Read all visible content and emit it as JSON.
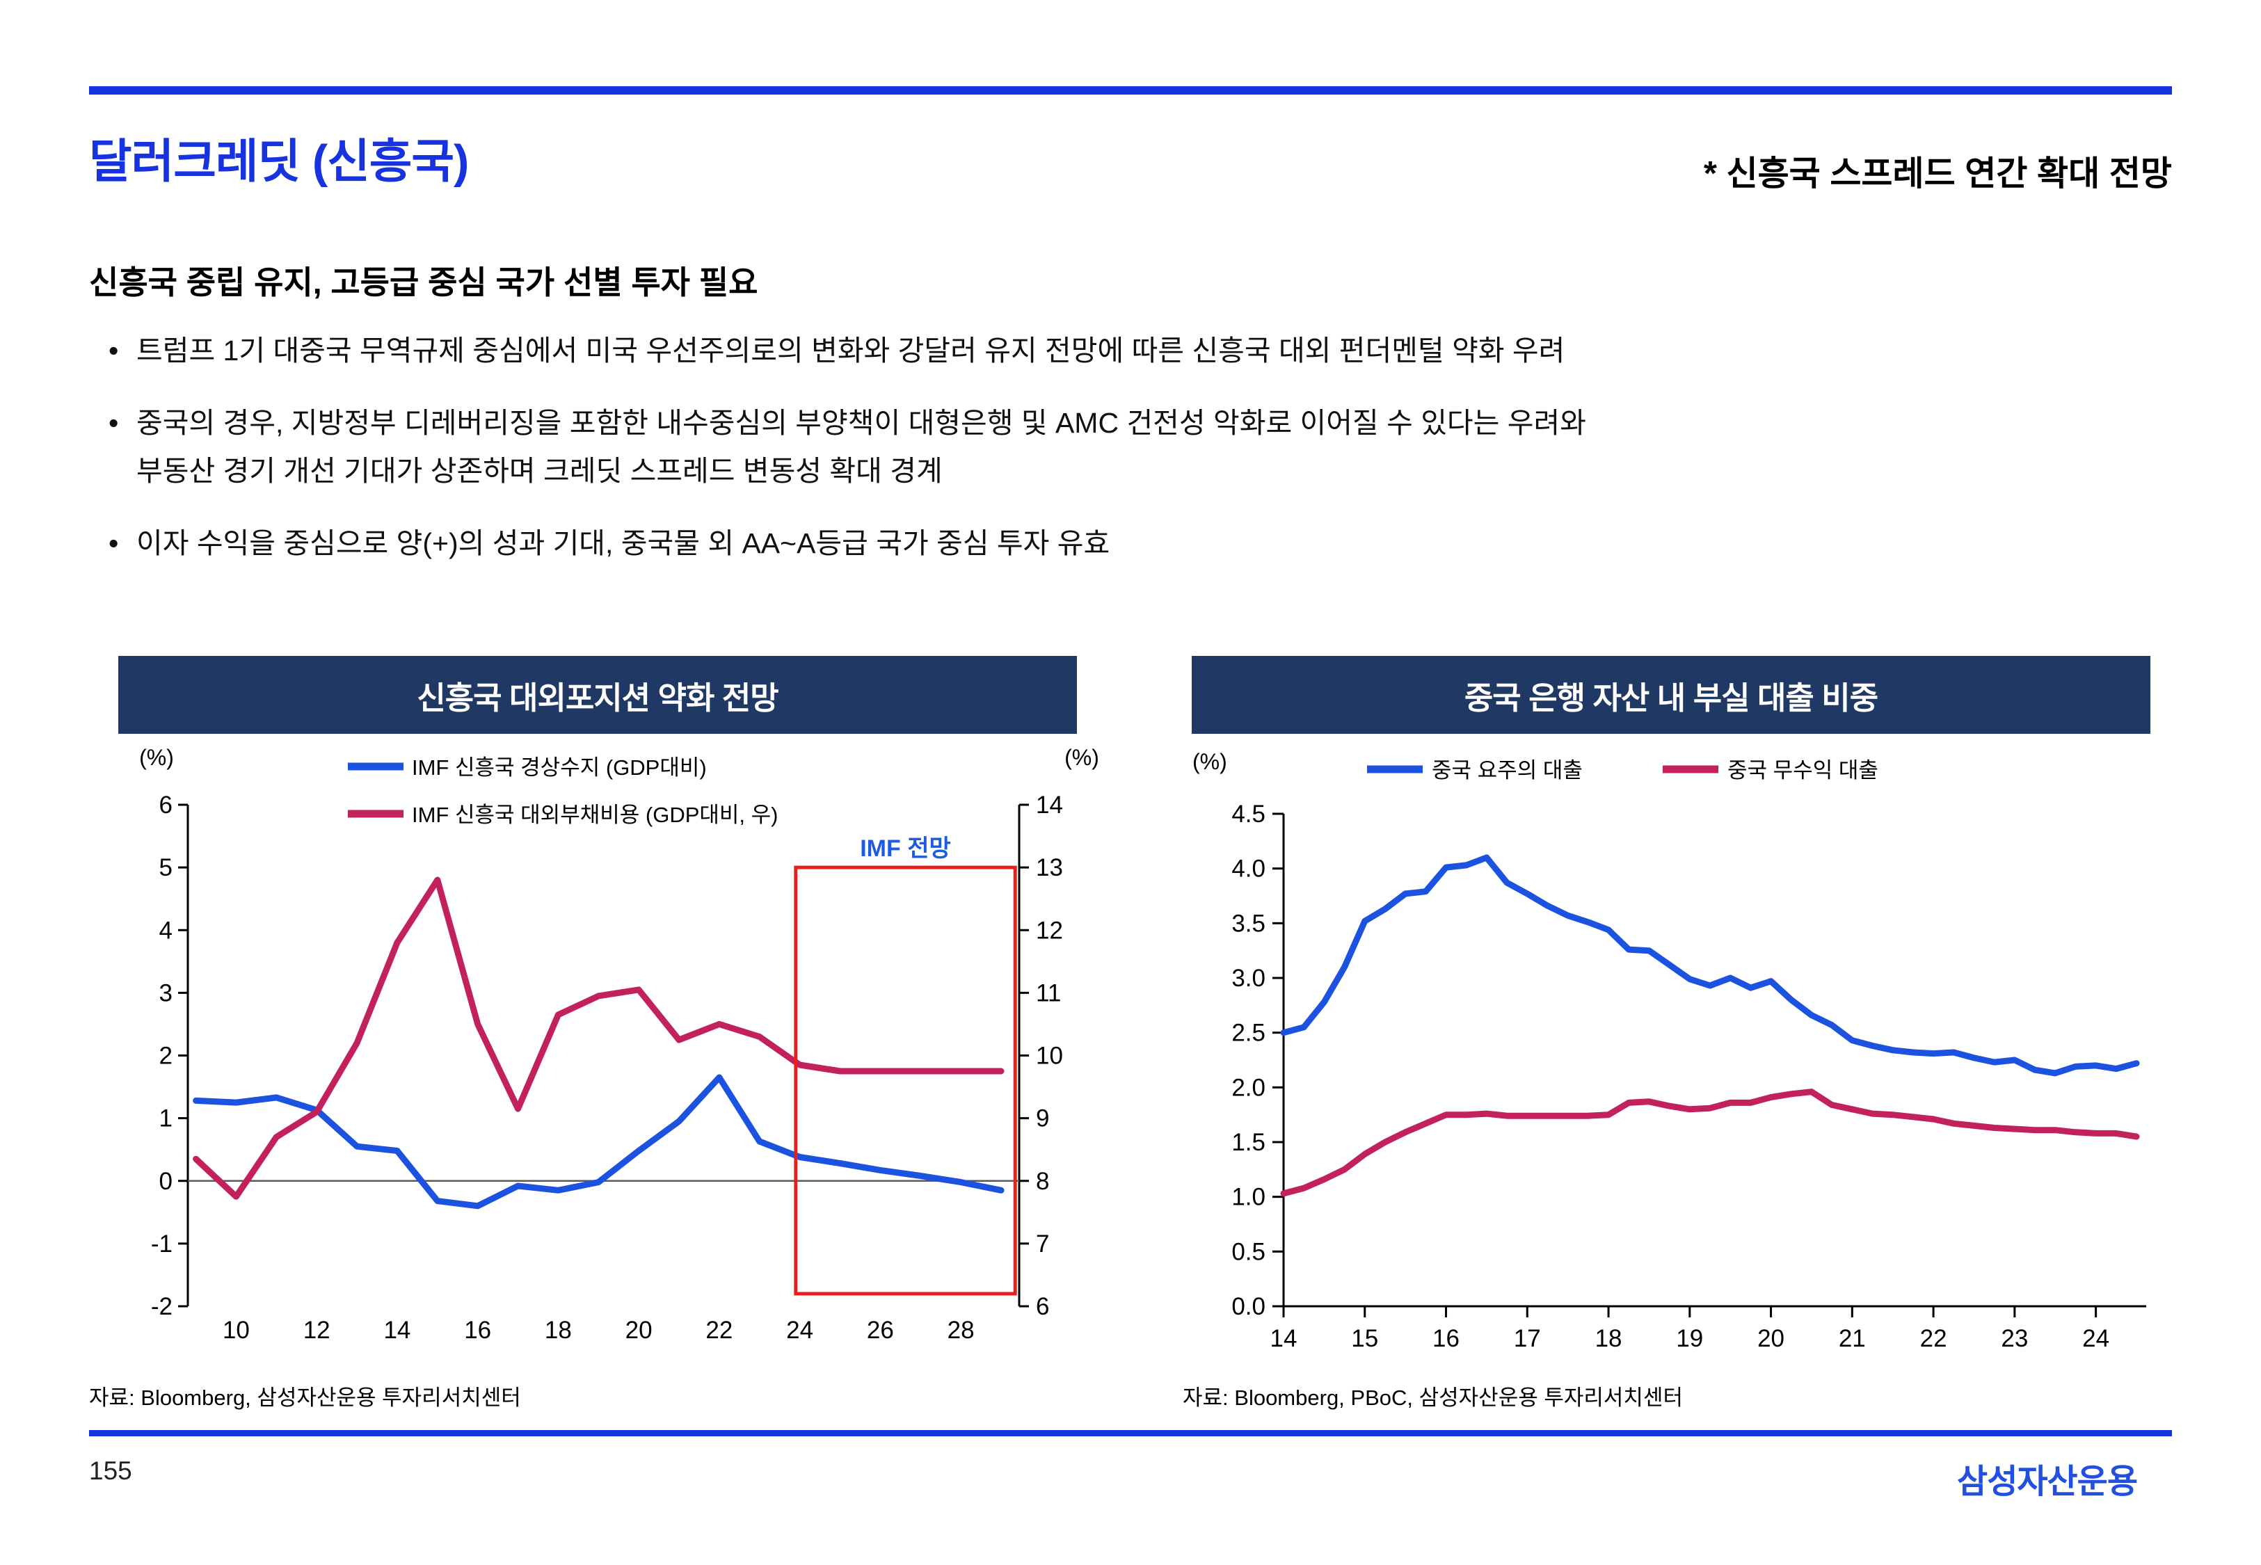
{
  "page": {
    "title": "달러크레딧 (신흥국)",
    "title_note": "* 신흥국 스프레드 연간 확대 전망",
    "subtitle": "신흥국 중립 유지, 고등급 중심 국가 선별 투자 필요",
    "bullets": [
      "트럼프 1기 대중국 무역규제 중심에서 미국 우선주의로의 변화와 강달러 유지 전망에 따른 신흥국 대외 펀더멘털 약화 우려",
      "중국의 경우, 지방정부 디레버리징을 포함한 내수중심의 부양책이 대형은행 및 AMC 건전성 악화로 이어질 수 있다는 우려와\n부동산 경기 개선 기대가 상존하며 크레딧 스프레드 변동성 확대 경계",
      "이자 수익을 중심으로 양(+)의 성과 기대, 중국물 외 AA~A등급 국가 중심 투자 유효"
    ],
    "page_number": "155",
    "logo": "삼성자산운용"
  },
  "colors": {
    "accent_blue": "#1733df",
    "header_navy": "#1f3864",
    "line_blue": "#1c52e0",
    "line_pink": "#c2215e",
    "forecast_box_red": "#e8201c",
    "forecast_label_blue": "#1e5be0",
    "logo_blue": "#2150e0"
  },
  "chart_data": [
    {
      "type": "line",
      "title": "신흥국 대외포지션 약화 전망",
      "unit_left": "(%)",
      "unit_right": "(%)",
      "legend_position": "top-left, stacked",
      "grid": false,
      "x_start": 9,
      "x_step": 1,
      "x_tick_values": [
        10,
        12,
        14,
        16,
        18,
        20,
        22,
        24,
        26,
        28
      ],
      "x_tick_labels": [
        "10",
        "12",
        "14",
        "16",
        "18",
        "20",
        "22",
        "24",
        "26",
        "28"
      ],
      "y_left": {
        "min": -2,
        "max": 6,
        "tick_values": [
          -2,
          -1,
          0,
          1,
          2,
          3,
          4,
          5,
          6
        ],
        "tick_labels": [
          "-2",
          "-1",
          "0",
          "1",
          "2",
          "3",
          "4",
          "5",
          "6"
        ]
      },
      "y_right": {
        "min": 6,
        "max": 14,
        "tick_values": [
          6,
          7,
          8,
          9,
          10,
          11,
          12,
          13,
          14
        ],
        "tick_labels": [
          "6",
          "7",
          "8",
          "9",
          "10",
          "11",
          "12",
          "13",
          "14"
        ]
      },
      "series": [
        {
          "name": "IMF 신흥국 경상수지 (GDP대비)",
          "axis": "left",
          "color": "#1c52e0",
          "values": [
            1.28,
            1.25,
            1.33,
            1.13,
            0.55,
            0.48,
            -0.32,
            -0.4,
            -0.08,
            -0.15,
            -0.02,
            0.48,
            0.95,
            1.65,
            0.63,
            0.38,
            0.28,
            0.17,
            0.08,
            -0.02,
            -0.15
          ]
        },
        {
          "name": "IMF 신흥국 대외부채비용 (GDP대비, 우)",
          "axis": "right",
          "color": "#c2215e",
          "values": [
            8.35,
            7.75,
            8.7,
            9.1,
            10.2,
            11.8,
            12.8,
            10.5,
            9.15,
            10.65,
            10.95,
            11.05,
            10.25,
            10.5,
            10.3,
            9.85,
            9.75,
            9.75,
            9.75,
            9.75,
            9.75
          ]
        }
      ],
      "annotation": {
        "label": "IMF 전망",
        "axis": "right",
        "x_from": 23.9,
        "x_to": 29.35,
        "y_from": 6.2,
        "y_to": 13.0,
        "box_color": "#e8201c",
        "label_color": "#1e5be0"
      },
      "source": "자료: Bloomberg, 삼성자산운용 투자리서치센터"
    },
    {
      "type": "line",
      "title": "중국 은행 자산 내 부실 대출 비중",
      "unit": "(%)",
      "legend_position": "top, horizontal",
      "grid": false,
      "x_start": 14,
      "x_step": 0.25,
      "x_tick_values": [
        14,
        15,
        16,
        17,
        18,
        19,
        20,
        21,
        22,
        23,
        24
      ],
      "x_tick_labels": [
        "14",
        "15",
        "16",
        "17",
        "18",
        "19",
        "20",
        "21",
        "22",
        "23",
        "24"
      ],
      "y": {
        "min": 0,
        "max": 4.5,
        "tick_values": [
          0,
          0.5,
          1,
          1.5,
          2,
          2.5,
          3,
          3.5,
          4,
          4.5
        ],
        "tick_labels": [
          "0.0",
          "0.5",
          "1.0",
          "1.5",
          "2.0",
          "2.5",
          "3.0",
          "3.5",
          "4.0",
          "4.5"
        ]
      },
      "series": [
        {
          "name": "중국 요주의 대출",
          "axis": "left",
          "color": "#1c52e0",
          "values": [
            2.5,
            2.55,
            2.78,
            3.1,
            3.52,
            3.63,
            3.77,
            3.79,
            4.01,
            4.03,
            4.1,
            3.87,
            3.77,
            3.66,
            3.57,
            3.51,
            3.44,
            3.26,
            3.25,
            3.12,
            2.99,
            2.93,
            3.0,
            2.91,
            2.97,
            2.8,
            2.66,
            2.57,
            2.43,
            2.38,
            2.34,
            2.32,
            2.31,
            2.32,
            2.27,
            2.23,
            2.25,
            2.16,
            2.13,
            2.19,
            2.2,
            2.17,
            2.22
          ]
        },
        {
          "name": "중국 무수익 대출",
          "axis": "left",
          "color": "#c2215e",
          "values": [
            1.03,
            1.08,
            1.16,
            1.25,
            1.39,
            1.5,
            1.59,
            1.67,
            1.75,
            1.75,
            1.76,
            1.74,
            1.74,
            1.74,
            1.74,
            1.74,
            1.75,
            1.86,
            1.87,
            1.83,
            1.8,
            1.81,
            1.86,
            1.86,
            1.91,
            1.94,
            1.96,
            1.84,
            1.8,
            1.76,
            1.75,
            1.73,
            1.71,
            1.67,
            1.65,
            1.63,
            1.62,
            1.61,
            1.61,
            1.59,
            1.58,
            1.58,
            1.55
          ]
        }
      ],
      "source": "자료: Bloomberg, PBoC, 삼성자산운용 투자리서치센터"
    }
  ]
}
